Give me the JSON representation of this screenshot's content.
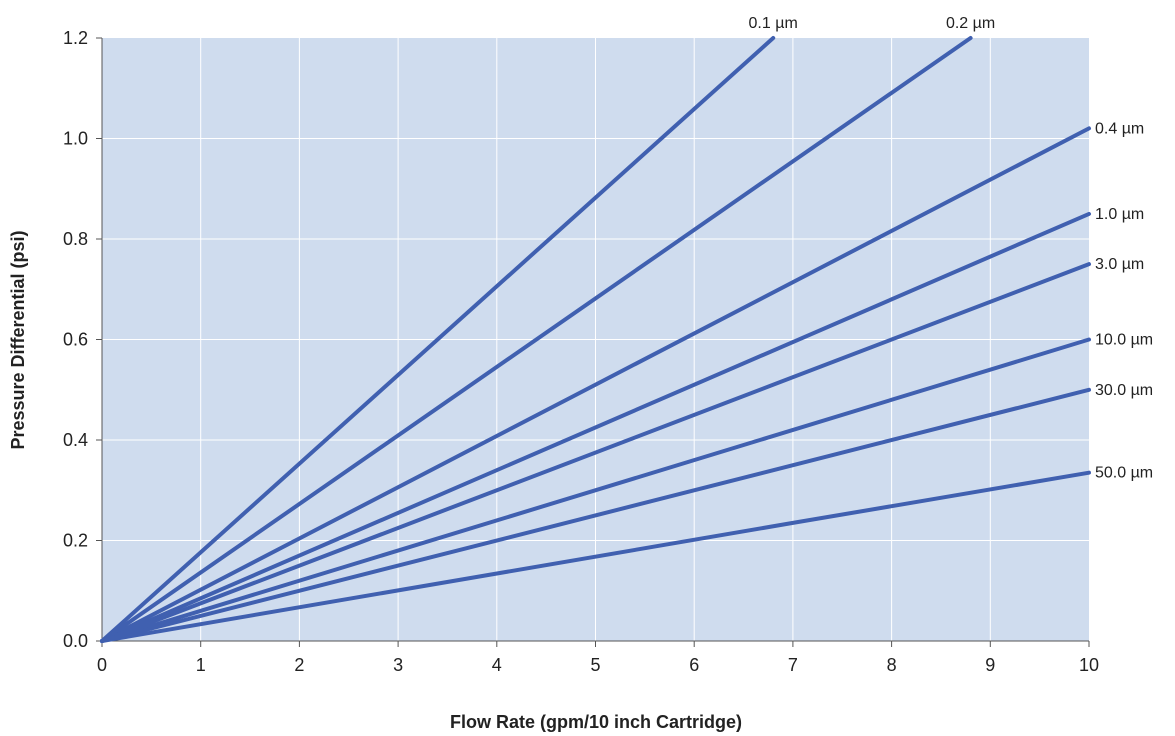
{
  "chart_data": {
    "type": "line",
    "title": "",
    "xlabel": "Flow Rate (gpm/10 inch Cartridge)",
    "ylabel": "Pressure Differential (psi)",
    "xlim": [
      0,
      10
    ],
    "ylim": [
      0,
      1.2
    ],
    "x_ticks": [
      "0",
      "1",
      "2",
      "3",
      "4",
      "5",
      "6",
      "7",
      "8",
      "9",
      "10"
    ],
    "y_ticks": [
      "0.0",
      "0.2",
      "0.4",
      "0.6",
      "0.8",
      "1.0",
      "1.2"
    ],
    "grid": true,
    "legend": "none",
    "plot_background": "#cfdcee",
    "line_color": "#4060b0",
    "grid_color": "#ffffff",
    "series": [
      {
        "name": "0.1 µm",
        "x": [
          0,
          6.8
        ],
        "y": [
          0,
          1.2
        ]
      },
      {
        "name": "0.2 µm",
        "x": [
          0,
          8.8
        ],
        "y": [
          0,
          1.2
        ]
      },
      {
        "name": "0.4 µm",
        "x": [
          0,
          10
        ],
        "y": [
          0,
          1.02
        ]
      },
      {
        "name": "1.0 µm",
        "x": [
          0,
          10
        ],
        "y": [
          0,
          0.85
        ]
      },
      {
        "name": "3.0 µm",
        "x": [
          0,
          10
        ],
        "y": [
          0,
          0.75
        ]
      },
      {
        "name": "10.0 µm",
        "x": [
          0,
          10
        ],
        "y": [
          0,
          0.6
        ]
      },
      {
        "name": "30.0 µm",
        "x": [
          0,
          10
        ],
        "y": [
          0,
          0.5
        ]
      },
      {
        "name": "50.0 µm",
        "x": [
          0,
          7
        ],
        "y": [
          0,
          0.235
        ],
        "x2": 10,
        "y2": 0.335
      }
    ]
  }
}
